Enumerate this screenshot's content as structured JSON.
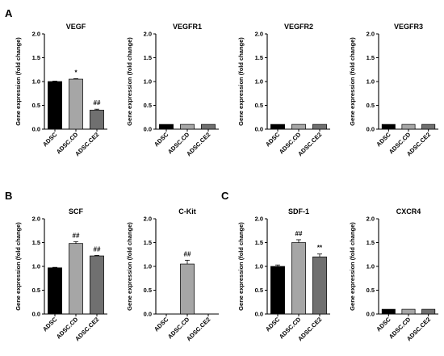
{
  "panel_labels": [
    "A",
    "B",
    "C"
  ],
  "colors": {
    "ADSC": "#000000",
    "ADSC.CD": "#a6a6a6",
    "ADSC.CE2": "#707070"
  },
  "chart_data": [
    {
      "type": "bar",
      "panel": "A",
      "title": "VEGF",
      "ylabel": "Gene expression (fold change)",
      "categories": [
        "ADSC",
        "ADSC.CD",
        "ADSC.CE2"
      ],
      "values": [
        1.0,
        1.05,
        0.4
      ],
      "errors": [
        0.01,
        0.01,
        0.02
      ],
      "annotations": [
        "",
        "*",
        "##"
      ],
      "ylim": [
        0,
        2.0
      ],
      "yticks": [
        "0.0",
        "0.5",
        "1.0",
        "1.5",
        "2.0"
      ]
    },
    {
      "type": "bar",
      "panel": "",
      "title": "VEGFR1",
      "ylabel": "Gene expression (fold change)",
      "categories": [
        "ADSC",
        "ADSC.CD",
        "ADSC.CE2"
      ],
      "values": [
        0.1,
        0.1,
        0.1
      ],
      "errors": [
        0,
        0,
        0
      ],
      "annotations": [
        "",
        "",
        ""
      ],
      "ylim": [
        0,
        2.0
      ],
      "yticks": [
        "0.0",
        "0.5",
        "1.0",
        "1.5",
        "2.0"
      ]
    },
    {
      "type": "bar",
      "panel": "",
      "title": "VEGFR2",
      "ylabel": "Gene expression (fold change)",
      "categories": [
        "ADSC",
        "ADSC.CD",
        "ADSC.CE2"
      ],
      "values": [
        0.1,
        0.1,
        0.1
      ],
      "errors": [
        0,
        0,
        0
      ],
      "annotations": [
        "",
        "",
        ""
      ],
      "ylim": [
        0,
        2.0
      ],
      "yticks": [
        "0.0",
        "0.5",
        "1.0",
        "1.5",
        "2.0"
      ]
    },
    {
      "type": "bar",
      "panel": "",
      "title": "VEGFR3",
      "ylabel": "Gene expression (fold change)",
      "categories": [
        "ADSC",
        "ADSC.CD",
        "ADSC.CE2"
      ],
      "values": [
        0.1,
        0.1,
        0.1
      ],
      "errors": [
        0,
        0,
        0
      ],
      "annotations": [
        "",
        "",
        ""
      ],
      "ylim": [
        0,
        2.0
      ],
      "yticks": [
        "0.0",
        "0.5",
        "1.0",
        "1.5",
        "2.0"
      ]
    },
    {
      "type": "bar",
      "panel": "B",
      "title": "SCF",
      "ylabel": "Gene expression (fold change)",
      "categories": [
        "ADSC",
        "ADSC.CD",
        "ADSC.CE2"
      ],
      "values": [
        0.97,
        1.48,
        1.22
      ],
      "errors": [
        0.01,
        0.04,
        0.01
      ],
      "annotations": [
        "",
        "##",
        "##"
      ],
      "ylim": [
        0,
        2.0
      ],
      "yticks": [
        "0.0",
        "0.5",
        "1.0",
        "1.5",
        "2.0"
      ]
    },
    {
      "type": "bar",
      "panel": "",
      "title": "C-Kit",
      "ylabel": "Gene expression (fold change)",
      "categories": [
        "ADSC",
        "ADSC.CD",
        "ADSC.CE2"
      ],
      "values": [
        0.0,
        1.05,
        0.0
      ],
      "errors": [
        0,
        0.08,
        0
      ],
      "annotations": [
        "",
        "##",
        ""
      ],
      "ylim": [
        0,
        2.0
      ],
      "yticks": [
        "0.0",
        "0.5",
        "1.0",
        "1.5",
        "2.0"
      ]
    },
    {
      "type": "bar",
      "panel": "C",
      "title": "SDF-1",
      "ylabel": "Gene expression (fold change)",
      "categories": [
        "ADSC",
        "ADSC.CD",
        "ADSC.CE2"
      ],
      "values": [
        1.0,
        1.5,
        1.2
      ],
      "errors": [
        0.03,
        0.06,
        0.06
      ],
      "annotations": [
        "",
        "##",
        "**"
      ],
      "ylim": [
        0,
        2.0
      ],
      "yticks": [
        "0.0",
        "0.5",
        "1.0",
        "1.5",
        "2.0"
      ]
    },
    {
      "type": "bar",
      "panel": "",
      "title": "CXCR4",
      "ylabel": "Gene expression (fold change)",
      "categories": [
        "ADSC",
        "ADSC.CD",
        "ADSC.CE2"
      ],
      "values": [
        0.1,
        0.1,
        0.1
      ],
      "errors": [
        0,
        0,
        0
      ],
      "annotations": [
        "",
        "",
        ""
      ],
      "ylim": [
        0,
        2.0
      ],
      "yticks": [
        "0.0",
        "0.5",
        "1.0",
        "1.5",
        "2.0"
      ]
    }
  ]
}
